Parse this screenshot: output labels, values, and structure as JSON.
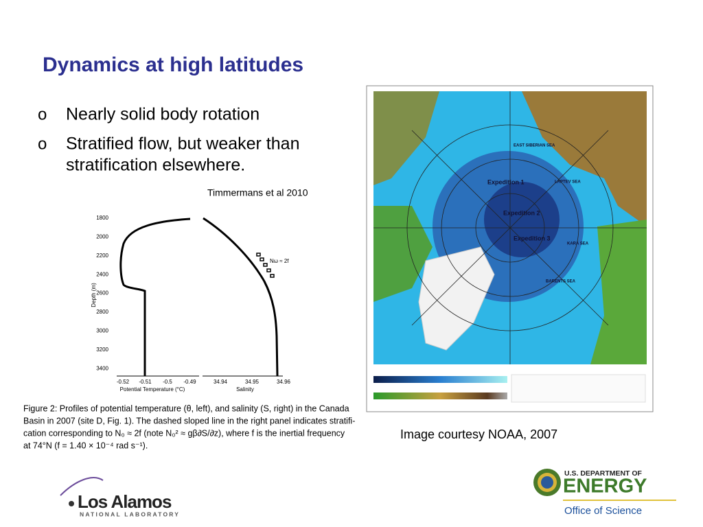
{
  "header": {
    "title": "Dynamics at high latitudes"
  },
  "bullets": [
    "Nearly solid body rotation",
    "Stratified flow, but weaker than",
    "stratification elsewhere."
  ],
  "bullet_marker": "o",
  "citation": "Timmermans et al 2010",
  "figure": {
    "depth_label": "Depth (m)",
    "depth_ticks": [
      "1800",
      "2000",
      "2200",
      "2400",
      "2600",
      "2800",
      "3000",
      "3200",
      "3400"
    ],
    "temperature_ticks": [
      "-0.52",
      "-0.51",
      "-0.5",
      "-0.49"
    ],
    "temperature_label": "Potential Temperature (°C)",
    "salinity_ticks": [
      "34.94",
      "34.95",
      "34.96"
    ],
    "salinity_label": "Salinity",
    "annotation": "Nω ≈ 2f",
    "caption": [
      "Figure 2:  Profiles of potential temperature (θ, left), and salinity (S, right) in the Canada",
      "Basin in 2007 (site D, Fig. 1). The dashed sloped line in the right panel indicates stratifi-",
      "cation corresponding to N₀ ≈ 2f  (note N₀² ≈ gβ∂S/∂z), where f  is the inertial frequency",
      "at 74°N (f  = 1.40 × 10⁻⁴ rad s⁻¹)."
    ]
  },
  "map": {
    "labels": [
      "EAST SIBERIAN SEA",
      "LAPTEV SEA",
      "KARA SEA",
      "BARENTS SEA",
      "Expedition 1",
      "Expedition 2",
      "Expedition 3"
    ],
    "caption": "Image courtesy NOAA, 2007"
  },
  "logos": {
    "lanl": {
      "name": "Los Alamos",
      "sub": "NATIONAL LABORATORY"
    },
    "doe": {
      "top": "U.S. DEPARTMENT OF",
      "name": "ENERGY",
      "sub": "Office of Science"
    }
  }
}
